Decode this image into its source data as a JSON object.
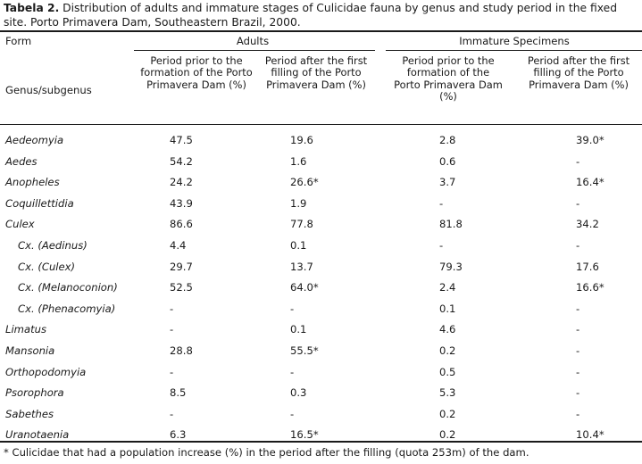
{
  "caption": {
    "label": "Tabela 2.",
    "text": " Distribution of adults and immature stages of Culicidae fauna by genus and study period in the fixed site. Porto Primavera Dam, Southeastern Brazil, 2000."
  },
  "header": {
    "form": "Form",
    "adults": "Adults",
    "immature": "Immature Specimens",
    "genus": "Genus/subgenus",
    "prior": "Period prior to the formation of the Porto Primavera Dam (%)",
    "after": "Period after the first filling of the Porto Primavera Dam (%)"
  },
  "rows": [
    {
      "name": "Aedeomyia",
      "indent": false,
      "a_prior": "47.5",
      "a_after": "19.6",
      "i_prior": "2.8",
      "i_after": "39.0*"
    },
    {
      "name": "Aedes",
      "indent": false,
      "a_prior": "54.2",
      "a_after": "1.6",
      "i_prior": "0.6",
      "i_after": "-"
    },
    {
      "name": "Anopheles",
      "indent": false,
      "a_prior": "24.2",
      "a_after": "26.6*",
      "i_prior": "3.7",
      "i_after": "16.4*"
    },
    {
      "name": "Coquillettidia",
      "indent": false,
      "a_prior": "43.9",
      "a_after": "1.9",
      "i_prior": "-",
      "i_after": "-"
    },
    {
      "name": "Culex",
      "indent": false,
      "a_prior": "86.6",
      "a_after": "77.8",
      "i_prior": "81.8",
      "i_after": "34.2"
    },
    {
      "name": "Cx. (Aedinus)",
      "indent": true,
      "a_prior": "4.4",
      "a_after": "0.1",
      "i_prior": "-",
      "i_after": "-"
    },
    {
      "name": "Cx. (Culex)",
      "indent": true,
      "a_prior": "29.7",
      "a_after": "13.7",
      "i_prior": "79.3",
      "i_after": "17.6"
    },
    {
      "name": "Cx. (Melanoconion)",
      "indent": true,
      "a_prior": "52.5",
      "a_after": "64.0*",
      "i_prior": "2.4",
      "i_after": "16.6*"
    },
    {
      "name": "Cx. (Phenacomyia)",
      "indent": true,
      "a_prior": "-",
      "a_after": "-",
      "i_prior": "0.1",
      "i_after": "-"
    },
    {
      "name": "Limatus",
      "indent": false,
      "a_prior": "-",
      "a_after": "0.1",
      "i_prior": "4.6",
      "i_after": "-"
    },
    {
      "name": "Mansonia",
      "indent": false,
      "a_prior": "28.8",
      "a_after": "55.5*",
      "i_prior": "0.2",
      "i_after": "-"
    },
    {
      "name": "Orthopodomyia",
      "indent": false,
      "a_prior": "-",
      "a_after": "-",
      "i_prior": "0.5",
      "i_after": "-"
    },
    {
      "name": "Psorophora",
      "indent": false,
      "a_prior": "8.5",
      "a_after": "0.3",
      "i_prior": "5.3",
      "i_after": "-"
    },
    {
      "name": "Sabethes",
      "indent": false,
      "a_prior": "-",
      "a_after": "-",
      "i_prior": "0.2",
      "i_after": "-"
    },
    {
      "name": "Uranotaenia",
      "indent": false,
      "a_prior": "6.3",
      "a_after": "16.5*",
      "i_prior": "0.2",
      "i_after": "10.4*"
    }
  ],
  "footnote": "* Culicidae that had a population increase (%) in the period after the filling (quota 253m) of the dam."
}
